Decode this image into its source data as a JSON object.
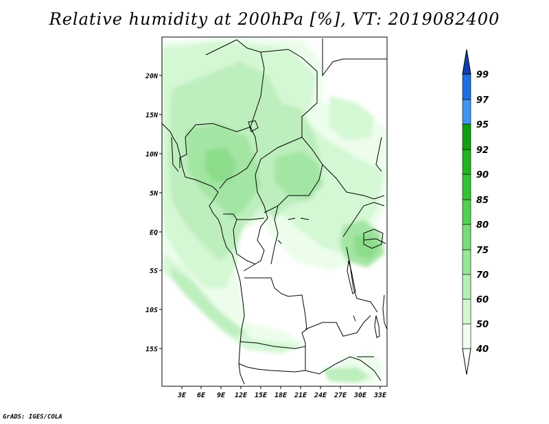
{
  "title": "Relative humidity at 200hPa [%], VT: 2019082400",
  "credit": "GrADS: IGES/COLA",
  "map": {
    "variable": "Relative humidity at 200hPa",
    "units": "%",
    "valid_time": "2019082400",
    "lon_range": [
      0,
      34
    ],
    "lat_range": [
      -20,
      25
    ],
    "lat_ticks": [
      "20N",
      "15N",
      "10N",
      "5N",
      "EQ",
      "5S",
      "10S",
      "15S"
    ],
    "lon_ticks": [
      "3E",
      "6E",
      "9E",
      "12E",
      "15E",
      "18E",
      "21E",
      "24E",
      "27E",
      "30E",
      "33E"
    ]
  },
  "colorbar": {
    "levels": [
      "40",
      "50",
      "60",
      "70",
      "75",
      "80",
      "85",
      "90",
      "92",
      "95",
      "97",
      "99"
    ],
    "colors": [
      "#f0fff0",
      "#d2f8d2",
      "#b4f0b4",
      "#96e696",
      "#78dc78",
      "#50d250",
      "#32c332",
      "#1eb41e",
      "#0fa00f",
      "#3c96f0",
      "#1e6ee6",
      "#1450c8",
      "#1040b0"
    ]
  }
}
